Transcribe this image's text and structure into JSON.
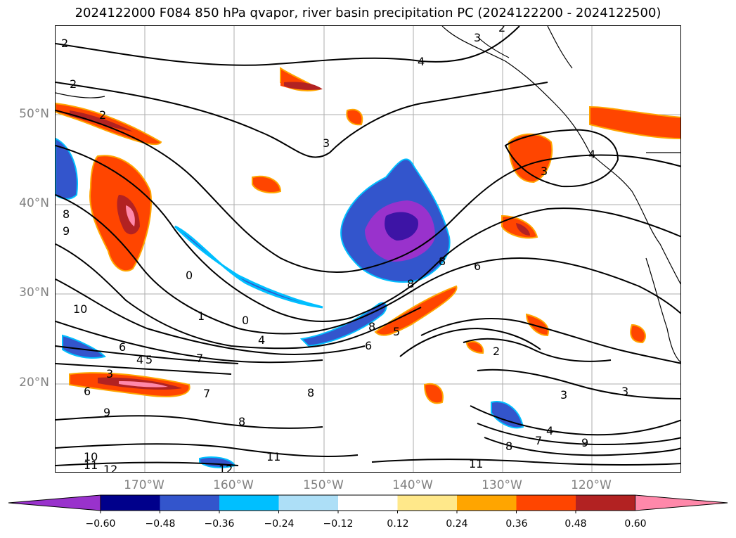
{
  "title": "2024122000 F084 850 hPa qvapor, river basin precipitation PC (2024122200 - 2024122500)",
  "lat_labels": [
    "50°N",
    "40°N",
    "30°N",
    "20°N"
  ],
  "lon_labels": [
    "170°W",
    "160°W",
    "150°W",
    "140°W",
    "130°W",
    "120°W"
  ],
  "colorbar": {
    "ticks": [
      "−0.60",
      "−0.48",
      "−0.36",
      "−0.24",
      "−0.12",
      "0.12",
      "0.24",
      "0.36",
      "0.48",
      "0.60"
    ],
    "colors": [
      "#9932CC",
      "#00008B",
      "#3355CC",
      "#00BFFF",
      "#ADDFF7",
      "#FFFFFF",
      "#FFE88A",
      "#FFA500",
      "#FF4500",
      "#B22222",
      "#FF88AA"
    ]
  },
  "contour_labels": [
    "2",
    "2",
    "2",
    "3",
    "4",
    "2",
    "3",
    "4",
    "3",
    "8",
    "9",
    "10",
    "6",
    "4",
    "5",
    "7",
    "3",
    "7",
    "6",
    "9",
    "8",
    "8",
    "10",
    "11",
    "12",
    "11",
    "12",
    "1",
    "0",
    "0",
    "4",
    "8",
    "6",
    "8",
    "8",
    "6",
    "2",
    "3",
    "3",
    "7",
    "8",
    "9",
    "11",
    "4",
    "5"
  ]
}
